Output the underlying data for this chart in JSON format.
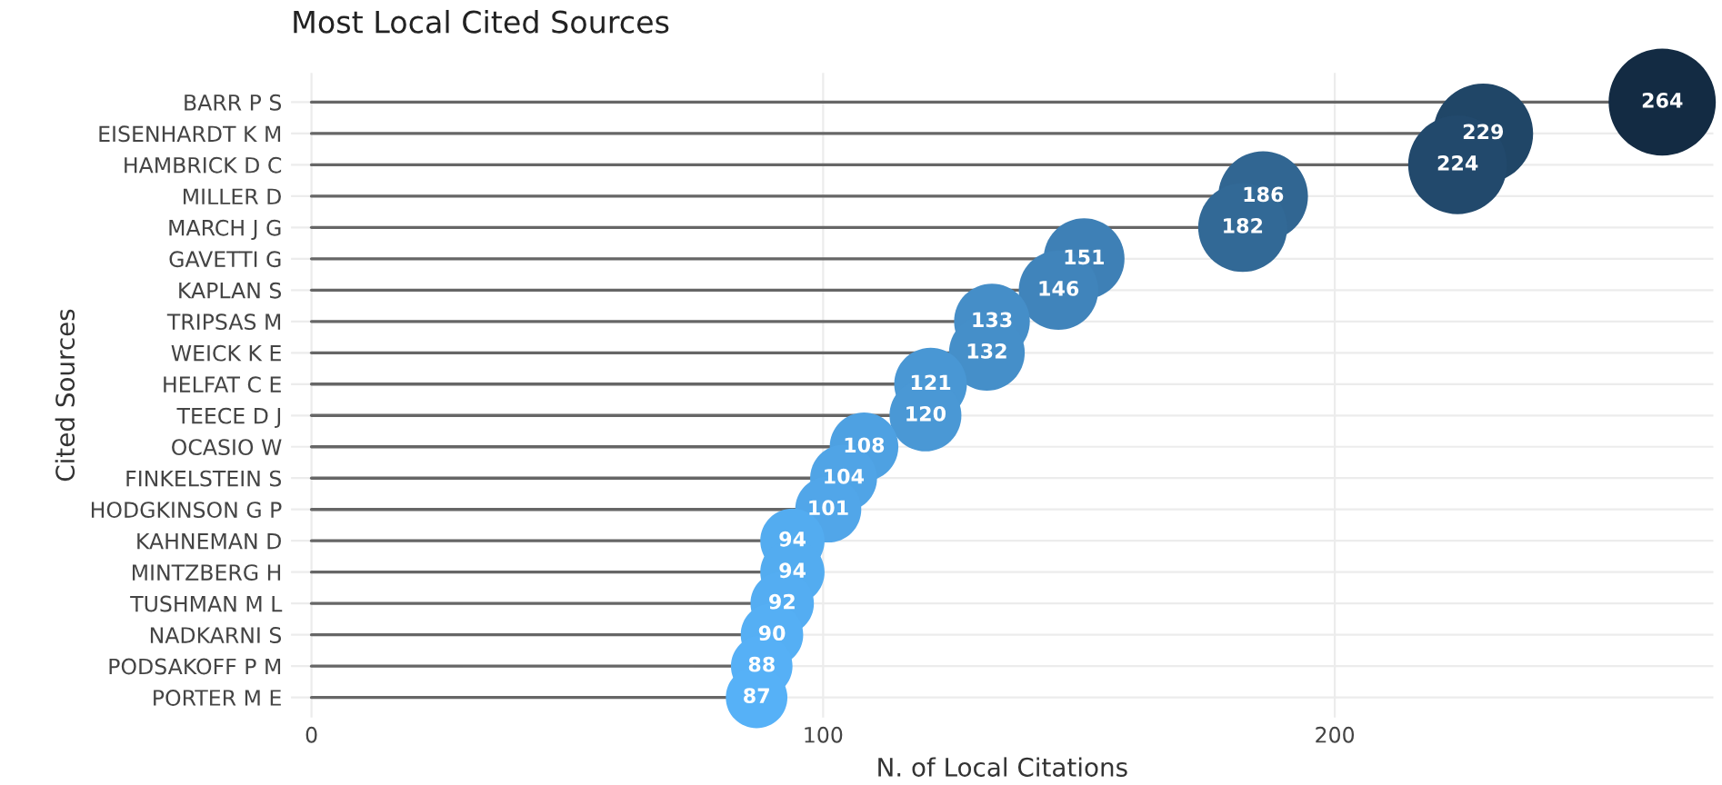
{
  "chart_data": {
    "type": "lollipop",
    "orientation": "horizontal",
    "title": "Most Local Cited Sources",
    "xlabel": "N. of Local Citations",
    "ylabel": "Cited Sources",
    "categories": [
      "BARR P S",
      "EISENHARDT K M",
      "HAMBRICK D C",
      "MILLER D",
      "MARCH J G",
      "GAVETTI G",
      "KAPLAN S",
      "TRIPSAS M",
      "WEICK K E",
      "HELFAT C E",
      "TEECE D J",
      "OCASIO W",
      "FINKELSTEIN S",
      "HODGKINSON G P",
      "KAHNEMAN D",
      "MINTZBERG H",
      "TUSHMAN M L",
      "NADKARNI S",
      "PODSAKOFF P M",
      "PORTER M E"
    ],
    "values": [
      264,
      229,
      224,
      186,
      182,
      151,
      146,
      133,
      132,
      121,
      120,
      108,
      104,
      101,
      94,
      94,
      92,
      90,
      88,
      87
    ],
    "colors": [
      "#132b43",
      "#204667",
      "#22496c",
      "#316692",
      "#326996",
      "#3e80b6",
      "#4084bb",
      "#458ec8",
      "#458fc9",
      "#4997d4",
      "#4a98d5",
      "#4ea1e2",
      "#50a4e6",
      "#51a6e9",
      "#53acf0",
      "#53acf0",
      "#54adf2",
      "#55aff4",
      "#56b0f6",
      "#56b1f7"
    ],
    "sizes": [
      1,
      0.87,
      0.85,
      0.7,
      0.69,
      0.57,
      0.55,
      0.5,
      0.5,
      0.46,
      0.45,
      0.41,
      0.39,
      0.38,
      0.36,
      0.36,
      0.35,
      0.34,
      0.33,
      0.33
    ],
    "data_labels": true,
    "xlim": [
      -4,
      274
    ],
    "xticks": [
      0,
      100,
      200
    ],
    "grid": true
  }
}
